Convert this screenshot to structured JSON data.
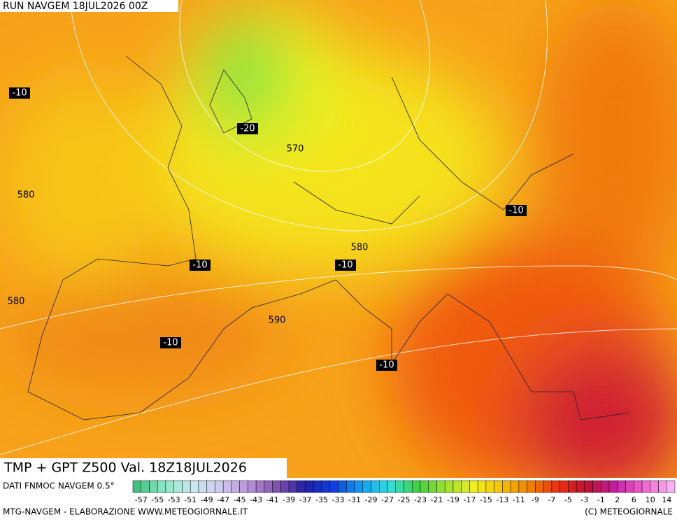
{
  "header": {
    "run": "RUN NAVGEM 18JUL2026 00Z"
  },
  "map": {
    "title": "TMP + GPT Z500 Val. 18Z18JUL2026",
    "contour_labels": [
      -10,
      -20,
      570,
      580,
      -10,
      580,
      -10,
      -10,
      580,
      590,
      -10,
      -10
    ]
  },
  "colorbar": {
    "source": "DATI FNMOC NAVGEM 0.5°",
    "labels": [
      -57,
      -55,
      -53,
      -51,
      -49,
      -47,
      -45,
      -43,
      -41,
      -39,
      -37,
      -35,
      -33,
      -31,
      -29,
      -27,
      -25,
      -23,
      -21,
      -19,
      -17,
      -15,
      -13,
      -11,
      -9,
      -7,
      -5,
      -3,
      -1,
      2,
      6,
      10,
      14
    ],
    "colors": [
      "#40c080",
      "#90e8c8",
      "#c8e8f0",
      "#d0c8f0",
      "#b890d8",
      "#8050b0",
      "#2020a0",
      "#1040e0",
      "#10a0f0",
      "#30e0e0",
      "#40d040",
      "#a0e030",
      "#f0f020",
      "#f8c000",
      "#f08000",
      "#e83010",
      "#c01030",
      "#c020a0",
      "#f060d0",
      "#f8b0f0"
    ]
  },
  "footer": {
    "credit": "MTG-NAVGEM - ELABORAZIONE WWW.METEOGIORNALE.IT",
    "copyright": "(C) METEOGIORNALE"
  }
}
